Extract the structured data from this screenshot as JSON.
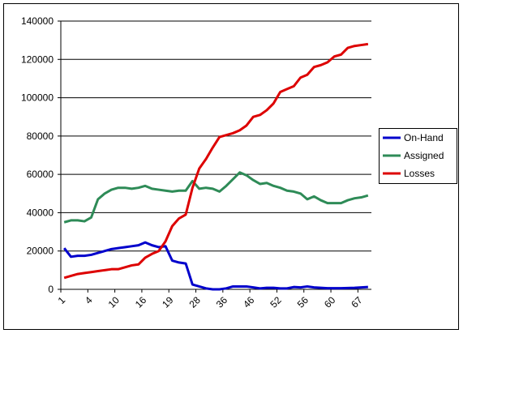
{
  "chart_data": {
    "type": "line",
    "categories": [
      "1",
      null,
      null,
      null,
      "4",
      null,
      null,
      null,
      "10",
      null,
      null,
      null,
      "16",
      null,
      null,
      null,
      "19",
      null,
      null,
      null,
      "28",
      null,
      null,
      null,
      "36",
      null,
      null,
      null,
      "46",
      null,
      null,
      null,
      "52",
      null,
      null,
      null,
      "56",
      null,
      null,
      null,
      "60",
      null,
      null,
      null,
      "67",
      null
    ],
    "series": [
      {
        "name": "On-Hand",
        "color": "#0000cc",
        "values": [
          21500,
          17000,
          17500,
          17500,
          18000,
          19000,
          20000,
          21000,
          21500,
          22000,
          22500,
          23000,
          24500,
          23000,
          22000,
          22500,
          15000,
          14000,
          13500,
          2500,
          1500,
          500,
          0,
          0,
          500,
          1500,
          1500,
          1500,
          1000,
          500,
          800,
          800,
          500,
          500,
          1200,
          1000,
          1500,
          1000,
          800,
          600,
          600,
          600,
          700,
          800,
          1000,
          1200
        ]
      },
      {
        "name": "Assigned",
        "color": "#2e8b57",
        "values": [
          35000,
          36000,
          36000,
          35500,
          37500,
          47000,
          50000,
          52000,
          53000,
          53000,
          52500,
          53000,
          54000,
          52500,
          52000,
          51500,
          51000,
          51500,
          51500,
          56500,
          52500,
          53000,
          52500,
          51000,
          54000,
          57500,
          61000,
          59500,
          57000,
          55000,
          55500,
          54000,
          53000,
          51500,
          51000,
          50000,
          47000,
          48500,
          46500,
          45000,
          45000,
          45000,
          46500,
          47500,
          48000,
          49000
        ]
      },
      {
        "name": "Losses",
        "color": "#dd0000",
        "values": [
          6000,
          7000,
          8000,
          8500,
          9000,
          9500,
          10000,
          10500,
          10500,
          11500,
          12500,
          13000,
          16500,
          18500,
          20000,
          25000,
          33000,
          37000,
          39000,
          53000,
          63000,
          68000,
          74000,
          79500,
          80500,
          81500,
          83000,
          85500,
          90000,
          91000,
          93500,
          97000,
          103000,
          104500,
          106000,
          110500,
          112000,
          116000,
          117000,
          118500,
          121500,
          122500,
          126000,
          127000,
          127500,
          128000
        ]
      }
    ],
    "ylim": [
      0,
      140000
    ],
    "yticks": [
      0,
      20000,
      40000,
      60000,
      80000,
      100000,
      120000,
      140000
    ],
    "grid": true,
    "legend": "right"
  }
}
